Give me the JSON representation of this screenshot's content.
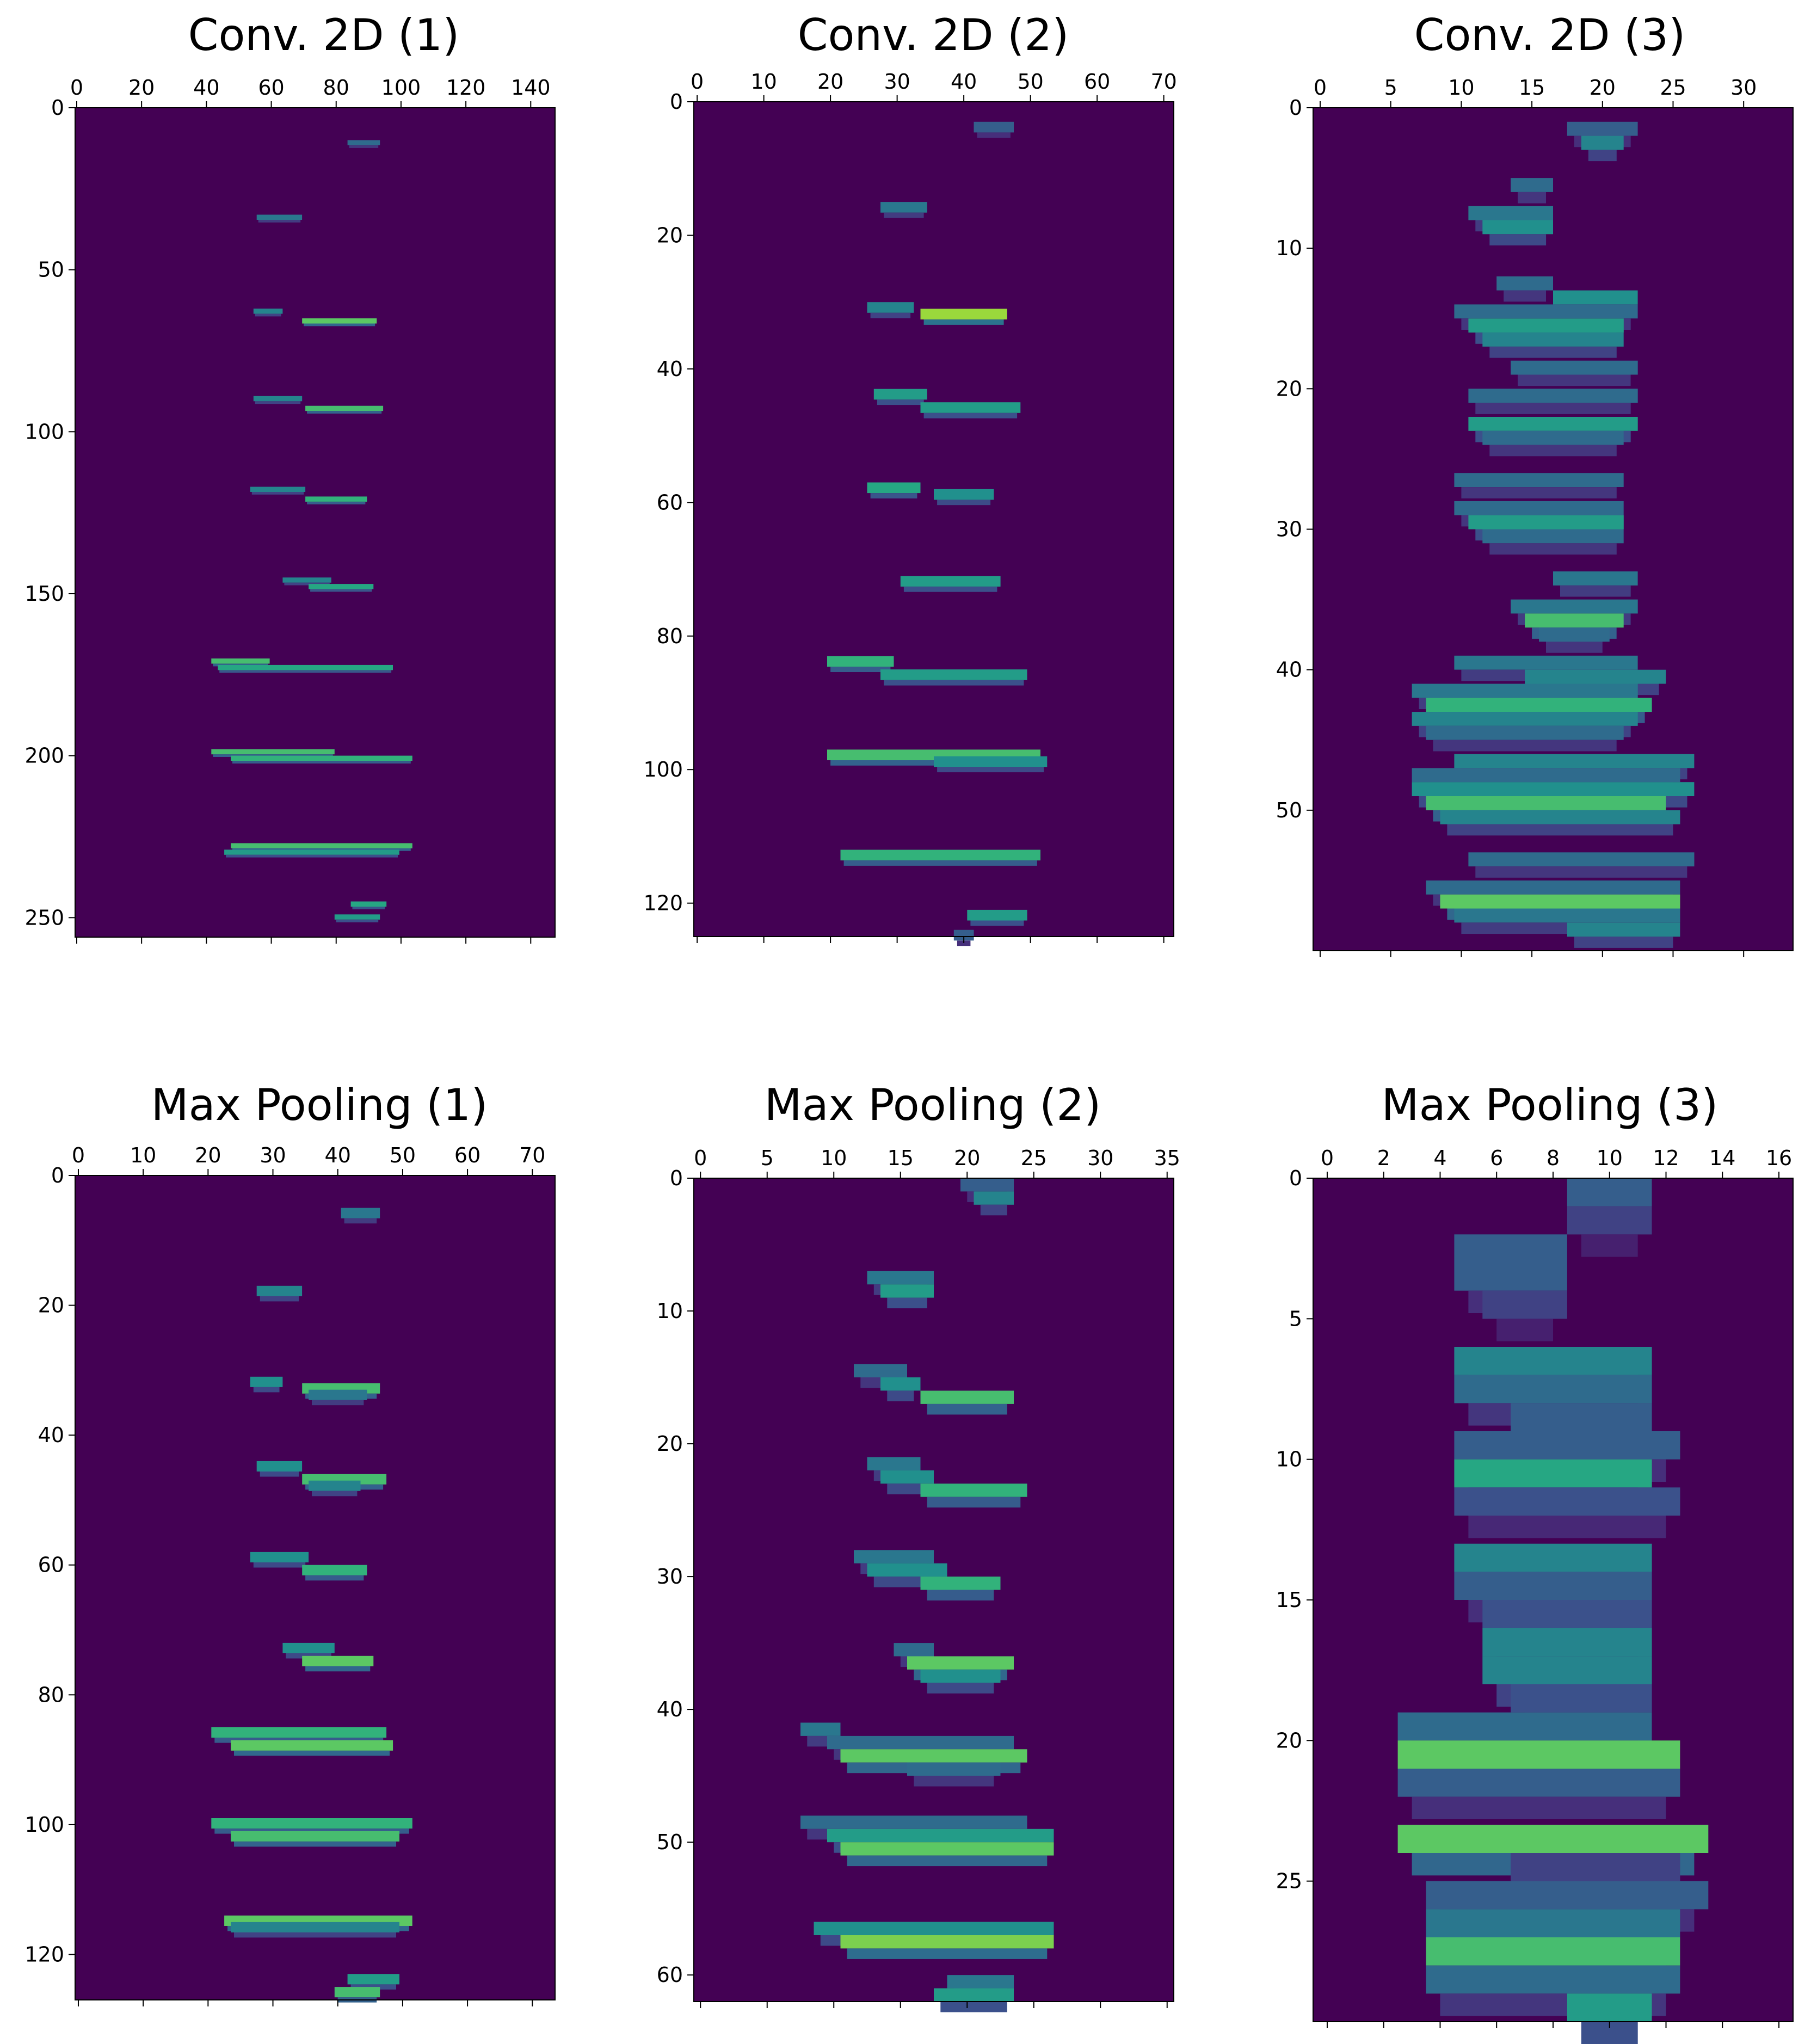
{
  "colors": {
    "background": "#440154",
    "palette": [
      "#440154",
      "#472c7a",
      "#3b518b",
      "#2c718e",
      "#21908d",
      "#27ad81",
      "#5cc863",
      "#aadc32",
      "#fde725"
    ]
  },
  "chart_data": [
    {
      "type": "heatmap",
      "colormap": "viridis",
      "title": "Conv. 2D (1)",
      "shape": [
        256,
        148
      ],
      "xlim": [
        0,
        148
      ],
      "ylim": [
        0,
        256
      ],
      "xticks": [
        0,
        20,
        40,
        60,
        80,
        100,
        120,
        140
      ],
      "yticks": [
        0,
        50,
        100,
        150,
        200,
        250
      ],
      "x_axis_position": "top",
      "grid": false,
      "strokes": [
        {
          "row": 10,
          "x0": 84,
          "x1": 94,
          "v": 0.35
        },
        {
          "row": 33,
          "x0": 56,
          "x1": 70,
          "v": 0.4
        },
        {
          "row": 62,
          "x0": 55,
          "x1": 64,
          "v": 0.45
        },
        {
          "row": 65,
          "x0": 70,
          "x1": 93,
          "v": 0.75
        },
        {
          "row": 89,
          "x0": 55,
          "x1": 70,
          "v": 0.45
        },
        {
          "row": 92,
          "x0": 71,
          "x1": 95,
          "v": 0.7
        },
        {
          "row": 117,
          "x0": 54,
          "x1": 71,
          "v": 0.45
        },
        {
          "row": 120,
          "x0": 71,
          "x1": 90,
          "v": 0.65
        },
        {
          "row": 145,
          "x0": 64,
          "x1": 79,
          "v": 0.45
        },
        {
          "row": 147,
          "x0": 72,
          "x1": 92,
          "v": 0.6
        },
        {
          "row": 170,
          "x0": 42,
          "x1": 60,
          "v": 0.7
        },
        {
          "row": 172,
          "x0": 44,
          "x1": 98,
          "v": 0.6
        },
        {
          "row": 198,
          "x0": 42,
          "x1": 80,
          "v": 0.7
        },
        {
          "row": 200,
          "x0": 48,
          "x1": 104,
          "v": 0.65
        },
        {
          "row": 227,
          "x0": 48,
          "x1": 104,
          "v": 0.7
        },
        {
          "row": 229,
          "x0": 46,
          "x1": 100,
          "v": 0.55
        },
        {
          "row": 245,
          "x0": 85,
          "x1": 96,
          "v": 0.6
        },
        {
          "row": 249,
          "x0": 80,
          "x1": 94,
          "v": 0.55
        }
      ]
    },
    {
      "type": "heatmap",
      "colormap": "viridis",
      "title": "Conv. 2D (2)",
      "shape": [
        125,
        72
      ],
      "xlim": [
        0,
        72
      ],
      "ylim": [
        0,
        125
      ],
      "xticks": [
        0,
        10,
        20,
        30,
        40,
        50,
        60,
        70
      ],
      "yticks": [
        0,
        20,
        40,
        60,
        80,
        100,
        120
      ],
      "x_axis_position": "top",
      "grid": false,
      "strokes": [
        {
          "row": 3,
          "x0": 42,
          "x1": 48,
          "v": 0.3
        },
        {
          "row": 15,
          "x0": 28,
          "x1": 35,
          "v": 0.4
        },
        {
          "row": 30,
          "x0": 26,
          "x1": 33,
          "v": 0.45
        },
        {
          "row": 31,
          "x0": 34,
          "x1": 47,
          "v": 0.85
        },
        {
          "row": 43,
          "x0": 27,
          "x1": 35,
          "v": 0.55
        },
        {
          "row": 45,
          "x0": 34,
          "x1": 49,
          "v": 0.55
        },
        {
          "row": 57,
          "x0": 26,
          "x1": 34,
          "v": 0.6
        },
        {
          "row": 58,
          "x0": 36,
          "x1": 45,
          "v": 0.5
        },
        {
          "row": 71,
          "x0": 31,
          "x1": 46,
          "v": 0.55
        },
        {
          "row": 83,
          "x0": 20,
          "x1": 30,
          "v": 0.65
        },
        {
          "row": 85,
          "x0": 28,
          "x1": 50,
          "v": 0.55
        },
        {
          "row": 97,
          "x0": 20,
          "x1": 52,
          "v": 0.7
        },
        {
          "row": 98,
          "x0": 36,
          "x1": 53,
          "v": 0.5
        },
        {
          "row": 112,
          "x0": 22,
          "x1": 52,
          "v": 0.65
        },
        {
          "row": 121,
          "x0": 41,
          "x1": 50,
          "v": 0.55
        },
        {
          "row": 124,
          "x0": 39,
          "x1": 42,
          "v": 0.3
        }
      ]
    },
    {
      "type": "heatmap",
      "colormap": "viridis",
      "title": "Conv. 2D (3)",
      "shape": [
        60,
        34
      ],
      "xlim": [
        0,
        34
      ],
      "ylim": [
        0,
        60
      ],
      "xticks": [
        0,
        5,
        10,
        15,
        20,
        25,
        30
      ],
      "yticks": [
        0,
        10,
        20,
        30,
        40,
        50
      ],
      "x_axis_position": "top",
      "grid": false,
      "strokes": [
        {
          "row": 1,
          "x0": 18,
          "x1": 23,
          "v": 0.3
        },
        {
          "row": 2,
          "x0": 19,
          "x1": 22,
          "v": 0.45
        },
        {
          "row": 5,
          "x0": 14,
          "x1": 17,
          "v": 0.35
        },
        {
          "row": 7,
          "x0": 11,
          "x1": 17,
          "v": 0.4
        },
        {
          "row": 8,
          "x0": 12,
          "x1": 17,
          "v": 0.5
        },
        {
          "row": 12,
          "x0": 13,
          "x1": 17,
          "v": 0.35
        },
        {
          "row": 13,
          "x0": 17,
          "x1": 23,
          "v": 0.5
        },
        {
          "row": 14,
          "x0": 10,
          "x1": 23,
          "v": 0.35
        },
        {
          "row": 15,
          "x0": 11,
          "x1": 22,
          "v": 0.55
        },
        {
          "row": 16,
          "x0": 12,
          "x1": 22,
          "v": 0.45
        },
        {
          "row": 18,
          "x0": 14,
          "x1": 23,
          "v": 0.35
        },
        {
          "row": 20,
          "x0": 11,
          "x1": 23,
          "v": 0.35
        },
        {
          "row": 22,
          "x0": 11,
          "x1": 23,
          "v": 0.55
        },
        {
          "row": 23,
          "x0": 12,
          "x1": 22,
          "v": 0.35
        },
        {
          "row": 26,
          "x0": 10,
          "x1": 22,
          "v": 0.35
        },
        {
          "row": 28,
          "x0": 10,
          "x1": 22,
          "v": 0.35
        },
        {
          "row": 29,
          "x0": 11,
          "x1": 22,
          "v": 0.55
        },
        {
          "row": 30,
          "x0": 12,
          "x1": 22,
          "v": 0.35
        },
        {
          "row": 33,
          "x0": 17,
          "x1": 23,
          "v": 0.4
        },
        {
          "row": 35,
          "x0": 14,
          "x1": 23,
          "v": 0.4
        },
        {
          "row": 36,
          "x0": 15,
          "x1": 22,
          "v": 0.7
        },
        {
          "row": 37,
          "x0": 16,
          "x1": 21,
          "v": 0.35
        },
        {
          "row": 39,
          "x0": 10,
          "x1": 23,
          "v": 0.4
        },
        {
          "row": 40,
          "x0": 15,
          "x1": 25,
          "v": 0.45
        },
        {
          "row": 41,
          "x0": 7,
          "x1": 23,
          "v": 0.4
        },
        {
          "row": 42,
          "x0": 8,
          "x1": 24,
          "v": 0.65
        },
        {
          "row": 43,
          "x0": 7,
          "x1": 23,
          "v": 0.45
        },
        {
          "row": 44,
          "x0": 8,
          "x1": 22,
          "v": 0.35
        },
        {
          "row": 46,
          "x0": 10,
          "x1": 27,
          "v": 0.45
        },
        {
          "row": 47,
          "x0": 7,
          "x1": 26,
          "v": 0.35
        },
        {
          "row": 48,
          "x0": 7,
          "x1": 27,
          "v": 0.5
        },
        {
          "row": 49,
          "x0": 8,
          "x1": 25,
          "v": 0.7
        },
        {
          "row": 50,
          "x0": 9,
          "x1": 26,
          "v": 0.45
        },
        {
          "row": 53,
          "x0": 11,
          "x1": 27,
          "v": 0.35
        },
        {
          "row": 55,
          "x0": 8,
          "x1": 26,
          "v": 0.35
        },
        {
          "row": 56,
          "x0": 9,
          "x1": 26,
          "v": 0.75
        },
        {
          "row": 57,
          "x0": 10,
          "x1": 26,
          "v": 0.4
        },
        {
          "row": 58,
          "x0": 18,
          "x1": 26,
          "v": 0.45
        }
      ]
    },
    {
      "type": "heatmap",
      "colormap": "viridis",
      "title": "Max Pooling (1)",
      "shape": [
        127,
        74
      ],
      "xlim": [
        0,
        74
      ],
      "ylim": [
        0,
        127
      ],
      "xticks": [
        0,
        10,
        20,
        30,
        40,
        50,
        60,
        70
      ],
      "yticks": [
        0,
        20,
        40,
        60,
        80,
        100,
        120
      ],
      "x_axis_position": "top",
      "grid": false,
      "strokes": [
        {
          "row": 5,
          "x0": 41,
          "x1": 47,
          "v": 0.4
        },
        {
          "row": 17,
          "x0": 28,
          "x1": 35,
          "v": 0.45
        },
        {
          "row": 31,
          "x0": 27,
          "x1": 32,
          "v": 0.5
        },
        {
          "row": 32,
          "x0": 35,
          "x1": 47,
          "v": 0.7
        },
        {
          "row": 33,
          "x0": 36,
          "x1": 45,
          "v": 0.4
        },
        {
          "row": 44,
          "x0": 28,
          "x1": 35,
          "v": 0.5
        },
        {
          "row": 46,
          "x0": 35,
          "x1": 48,
          "v": 0.7
        },
        {
          "row": 47,
          "x0": 36,
          "x1": 44,
          "v": 0.45
        },
        {
          "row": 58,
          "x0": 27,
          "x1": 36,
          "v": 0.5
        },
        {
          "row": 60,
          "x0": 35,
          "x1": 45,
          "v": 0.65
        },
        {
          "row": 72,
          "x0": 32,
          "x1": 40,
          "v": 0.5
        },
        {
          "row": 74,
          "x0": 35,
          "x1": 46,
          "v": 0.75
        },
        {
          "row": 85,
          "x0": 21,
          "x1": 48,
          "v": 0.65
        },
        {
          "row": 87,
          "x0": 24,
          "x1": 49,
          "v": 0.75
        },
        {
          "row": 99,
          "x0": 21,
          "x1": 52,
          "v": 0.65
        },
        {
          "row": 101,
          "x0": 24,
          "x1": 50,
          "v": 0.7
        },
        {
          "row": 114,
          "x0": 23,
          "x1": 52,
          "v": 0.75
        },
        {
          "row": 115,
          "x0": 24,
          "x1": 50,
          "v": 0.45
        },
        {
          "row": 123,
          "x0": 42,
          "x1": 50,
          "v": 0.55
        },
        {
          "row": 125,
          "x0": 40,
          "x1": 47,
          "v": 0.7
        }
      ]
    },
    {
      "type": "heatmap",
      "colormap": "viridis",
      "title": "Max Pooling (2)",
      "shape": [
        62,
        36
      ],
      "xlim": [
        0,
        36
      ],
      "ylim": [
        0,
        62
      ],
      "xticks": [
        0,
        5,
        10,
        15,
        20,
        25,
        30,
        35
      ],
      "yticks": [
        0,
        10,
        20,
        30,
        40,
        50,
        60
      ],
      "x_axis_position": "top",
      "grid": false,
      "strokes": [
        {
          "row": 0,
          "x0": 20,
          "x1": 24,
          "v": 0.3
        },
        {
          "row": 1,
          "x0": 21,
          "x1": 24,
          "v": 0.45
        },
        {
          "row": 7,
          "x0": 13,
          "x1": 18,
          "v": 0.4
        },
        {
          "row": 8,
          "x0": 14,
          "x1": 18,
          "v": 0.55
        },
        {
          "row": 14,
          "x0": 12,
          "x1": 16,
          "v": 0.35
        },
        {
          "row": 15,
          "x0": 14,
          "x1": 17,
          "v": 0.5
        },
        {
          "row": 16,
          "x0": 17,
          "x1": 24,
          "v": 0.7
        },
        {
          "row": 21,
          "x0": 13,
          "x1": 17,
          "v": 0.4
        },
        {
          "row": 22,
          "x0": 14,
          "x1": 18,
          "v": 0.5
        },
        {
          "row": 23,
          "x0": 17,
          "x1": 25,
          "v": 0.65
        },
        {
          "row": 28,
          "x0": 12,
          "x1": 18,
          "v": 0.4
        },
        {
          "row": 29,
          "x0": 13,
          "x1": 19,
          "v": 0.5
        },
        {
          "row": 30,
          "x0": 17,
          "x1": 23,
          "v": 0.65
        },
        {
          "row": 35,
          "x0": 15,
          "x1": 18,
          "v": 0.35
        },
        {
          "row": 36,
          "x0": 16,
          "x1": 24,
          "v": 0.75
        },
        {
          "row": 37,
          "x0": 17,
          "x1": 23,
          "v": 0.5
        },
        {
          "row": 41,
          "x0": 8,
          "x1": 11,
          "v": 0.4
        },
        {
          "row": 42,
          "x0": 10,
          "x1": 24,
          "v": 0.35
        },
        {
          "row": 43,
          "x0": 11,
          "x1": 25,
          "v": 0.75
        },
        {
          "row": 44,
          "x0": 16,
          "x1": 23,
          "v": 0.35
        },
        {
          "row": 48,
          "x0": 8,
          "x1": 25,
          "v": 0.35
        },
        {
          "row": 49,
          "x0": 10,
          "x1": 27,
          "v": 0.55
        },
        {
          "row": 50,
          "x0": 11,
          "x1": 27,
          "v": 0.75
        },
        {
          "row": 56,
          "x0": 9,
          "x1": 27,
          "v": 0.5
        },
        {
          "row": 57,
          "x0": 11,
          "x1": 27,
          "v": 0.8
        },
        {
          "row": 60,
          "x0": 19,
          "x1": 24,
          "v": 0.4
        },
        {
          "row": 61,
          "x0": 18,
          "x1": 24,
          "v": 0.55
        }
      ]
    },
    {
      "type": "heatmap",
      "colormap": "viridis",
      "title": "Max Pooling (3)",
      "shape": [
        30,
        17
      ],
      "xlim": [
        0,
        17
      ],
      "ylim": [
        0,
        30
      ],
      "xticks": [
        0,
        2,
        4,
        6,
        8,
        10,
        12,
        14,
        16
      ],
      "yticks": [
        0,
        5,
        10,
        15,
        20,
        25
      ],
      "x_axis_position": "top",
      "grid": false,
      "strokes": [
        {
          "row": 0,
          "x0": 9,
          "x1": 12,
          "v": 0.3
        },
        {
          "row": 1,
          "x0": 9,
          "x1": 12,
          "v": 0.2
        },
        {
          "row": 2,
          "x0": 5,
          "x1": 9,
          "v": 0.3
        },
        {
          "row": 3,
          "x0": 5,
          "x1": 9,
          "v": 0.3
        },
        {
          "row": 4,
          "x0": 6,
          "x1": 9,
          "v": 0.2
        },
        {
          "row": 6,
          "x0": 5,
          "x1": 12,
          "v": 0.45
        },
        {
          "row": 7,
          "x0": 5,
          "x1": 12,
          "v": 0.35
        },
        {
          "row": 8,
          "x0": 7,
          "x1": 12,
          "v": 0.3
        },
        {
          "row": 9,
          "x0": 5,
          "x1": 13,
          "v": 0.3
        },
        {
          "row": 10,
          "x0": 5,
          "x1": 12,
          "v": 0.6
        },
        {
          "row": 11,
          "x0": 5,
          "x1": 13,
          "v": 0.25
        },
        {
          "row": 13,
          "x0": 5,
          "x1": 12,
          "v": 0.45
        },
        {
          "row": 14,
          "x0": 5,
          "x1": 12,
          "v": 0.3
        },
        {
          "row": 15,
          "x0": 6,
          "x1": 12,
          "v": 0.25
        },
        {
          "row": 16,
          "x0": 6,
          "x1": 12,
          "v": 0.45
        },
        {
          "row": 17,
          "x0": 6,
          "x1": 12,
          "v": 0.45
        },
        {
          "row": 18,
          "x0": 7,
          "x1": 12,
          "v": 0.25
        },
        {
          "row": 19,
          "x0": 3,
          "x1": 12,
          "v": 0.35
        },
        {
          "row": 20,
          "x0": 3,
          "x1": 13,
          "v": 0.75
        },
        {
          "row": 21,
          "x0": 3,
          "x1": 13,
          "v": 0.3
        },
        {
          "row": 23,
          "x0": 3,
          "x1": 14,
          "v": 0.75
        },
        {
          "row": 24,
          "x0": 7,
          "x1": 13,
          "v": 0.2
        },
        {
          "row": 25,
          "x0": 4,
          "x1": 14,
          "v": 0.3
        },
        {
          "row": 26,
          "x0": 4,
          "x1": 13,
          "v": 0.4
        },
        {
          "row": 27,
          "x0": 4,
          "x1": 13,
          "v": 0.7
        },
        {
          "row": 28,
          "x0": 4,
          "x1": 13,
          "v": 0.35
        },
        {
          "row": 29,
          "x0": 9,
          "x1": 12,
          "v": 0.55
        }
      ]
    }
  ]
}
